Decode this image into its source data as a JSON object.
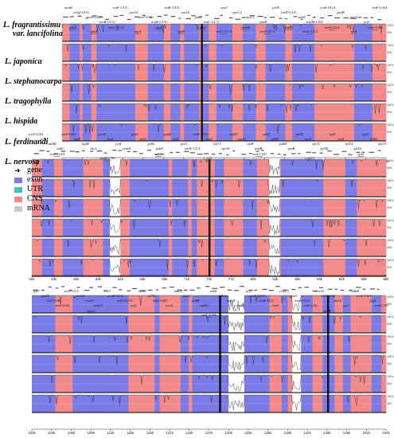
{
  "species": [
    {
      "line1": "L. fragrantissimu",
      "line2": "var. lancifolina"
    },
    {
      "line1": "L. japonica",
      "line2": ""
    },
    {
      "line1": "L. stephanocarpa",
      "line2": ""
    },
    {
      "line1": "L. tragophylla",
      "line2": ""
    },
    {
      "line1": "L. hispida",
      "line2": ""
    },
    {
      "line1": "L. ferdinandi",
      "line2": ""
    },
    {
      "line1": "L. nervosa",
      "line2": ""
    }
  ],
  "legend": [
    {
      "label": "gene",
      "type": "arrow",
      "color": "#555555"
    },
    {
      "label": "exon",
      "type": "box",
      "color": "#7b7be8"
    },
    {
      "label": "UTR",
      "type": "box",
      "color": "#3fc4c4"
    },
    {
      "label": "CNS",
      "type": "box",
      "color": "#f28a8a"
    },
    {
      "label": "mRNA",
      "type": "box",
      "color": "#c8c8c8"
    }
  ],
  "colors": {
    "exon": "#7b7be8",
    "cns": "#f28a8a",
    "utr": "#3fc4c4",
    "baseline": "#000000",
    "ir_line": "#000000"
  },
  "percent_labels": [
    "100%",
    "50%"
  ],
  "panels": [
    {
      "axis": [
        "0k",
        "3k",
        "6k",
        "9k",
        "12k",
        "15k",
        "18k",
        "21k",
        "24k",
        "27k",
        "30k",
        "33k",
        "36k",
        "39k",
        "42k",
        "45k",
        "48k"
      ],
      "genes_top": [
        "matK",
        "trnQ-UUG",
        "trnS-GCU",
        "trnR-UCU",
        "trnE-UUC",
        "rps14",
        "trnT-GGU",
        "trnH-GUG",
        "trnK-UUU",
        "rps16",
        "psbI",
        "trnC-GCA",
        "rps2",
        "rpoC2",
        "rpoC1",
        "rpoB",
        "petN",
        "trnD-GUC",
        "psbZ",
        "trnfM-CAU",
        "trnS-UGA",
        "psaB",
        "psaA",
        "ycf3",
        "trnF-GAA"
      ],
      "genes_bottom": [
        "psbA",
        "psbK",
        "trnG-GCC",
        "atpA",
        "atpF",
        "atpH",
        "atpI",
        "trnC-GCA",
        "psbM",
        "trnY-GUA",
        "psbD",
        "trnG-UCC",
        "trnS-GGA",
        "rps4",
        "trnL-UAA"
      ]
    },
    {
      "axis": [
        "50k",
        "53k",
        "56k",
        "59k",
        "62k",
        "65k",
        "68k",
        "71k",
        "74k",
        "77k",
        "80k",
        "83k",
        "86k",
        "89k",
        "92k",
        "95k",
        "98k"
      ],
      "genes_top": [
        "trnT-GAA",
        "ndhJ",
        "ndhK",
        "ndhC",
        "trnV-UAC",
        "atpE",
        "atpB",
        "rbcL",
        "accD",
        "psaI",
        "ycf4",
        "cemA",
        "petA",
        "psbJ",
        "psbL",
        "psbF",
        "psbE",
        "petL",
        "petG",
        "trnW-CCA",
        "trnP-UGG",
        "psaJ",
        "rpl33",
        "rps18",
        "rpl20",
        "rps12",
        "clpP",
        "psbB",
        "psbT",
        "psbN",
        "psbH",
        "petB",
        "petD",
        "rpoA",
        "rps11",
        "rpl36",
        "infA",
        "rps8",
        "rpl14",
        "rpl16",
        "rps3",
        "rpl22",
        "rps19"
      ],
      "genes_bottom": [
        "trnF-GAA",
        "trnM-CAU",
        "ndhB",
        "ycf2",
        "trnI-CAU",
        "rpl23",
        "rpl2"
      ]
    },
    {
      "axis": [
        "100k",
        "103k",
        "106k",
        "109k",
        "112k",
        "115k",
        "118k",
        "121k",
        "124k",
        "127k",
        "130k",
        "133k",
        "136k",
        "139k",
        "142k",
        "145k",
        "148k",
        "151k",
        "154k"
      ],
      "genes_top": [
        "rps7",
        "rps12",
        "trnV-GAC",
        "trnI-GAU",
        "trnA-UGC",
        "rrn16",
        "rrn23",
        "rrn4.5",
        "rrn5",
        "trnR-ACG",
        "trnN-GUU",
        "ycf1",
        "ndhF",
        "rpl32",
        "trnL-UAG",
        "ccsA",
        "ndhD",
        "psaC",
        "ndhE",
        "ndhG",
        "ndhI",
        "ndhA",
        "ndhH",
        "rps15",
        "ycf1",
        "trnN-GUU",
        "trnR-ACG",
        "rrn5",
        "rrn4.5",
        "rrn23",
        "trnA-UGC",
        "trnI-GAU",
        "rrn16",
        "trnV-GAC",
        "rps12",
        "rps7",
        "ndhB",
        "trnL-CAA",
        "ycf2",
        "trnI-CAU"
      ],
      "genes_bottom": [
        "rps12",
        "trnL-CAA",
        "ndhB"
      ]
    }
  ]
}
